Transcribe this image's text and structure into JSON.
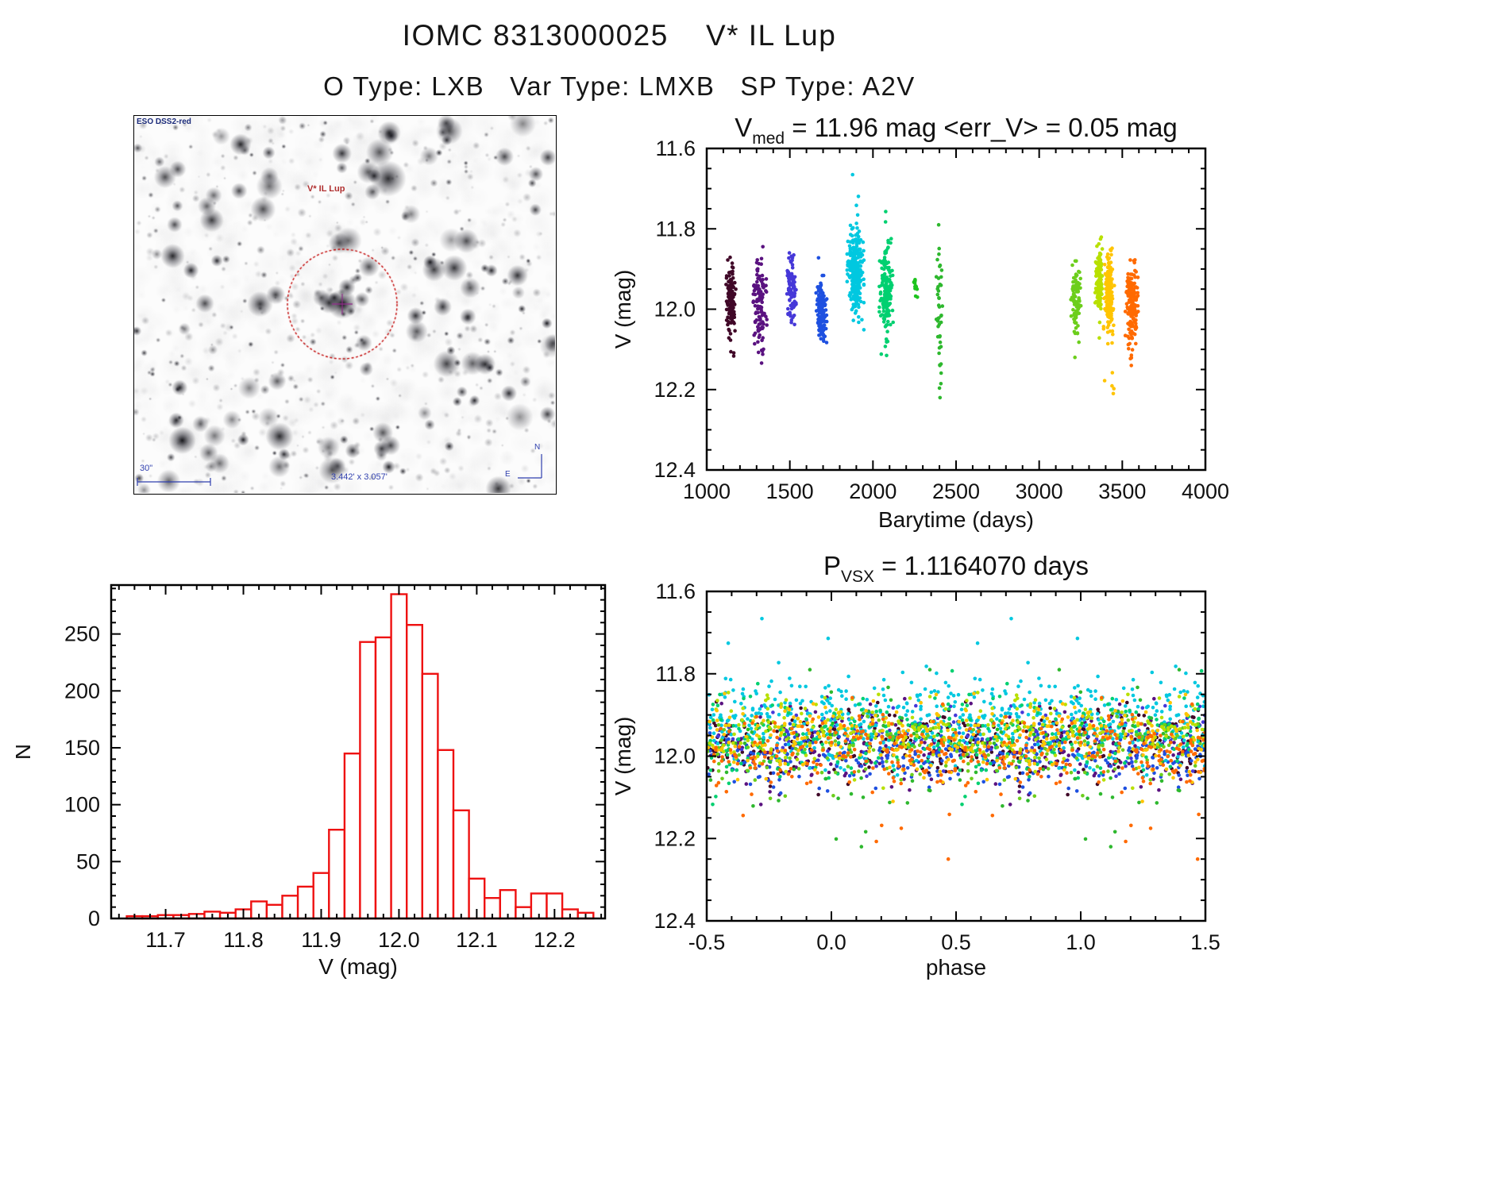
{
  "header": {
    "title": "IOMC 8313000025    V* IL Lup",
    "subtitle": "O Type: LXB   Var Type: LMXB   SP Type: A2V"
  },
  "finder": {
    "survey_label": "ESO DSS2-red",
    "target_label": "V* IL Lup",
    "scale_label": "30\"",
    "fov_label": "3.442' x 3.057'",
    "compass_north": "N",
    "compass_east": "E",
    "colors": {
      "circle": "#c00000",
      "target": "#b03030",
      "annotation": "#2f3fae"
    }
  },
  "chart_data": [
    {
      "name": "lightcurve",
      "type": "scatter",
      "title_parts": [
        {
          "t": "V"
        },
        {
          "t": "med",
          "sub": true
        },
        {
          "t": " = 11.96 mag  <err_V> = 0.05 mag"
        }
      ],
      "xlabel": "Barytime (days)",
      "ylabel": "V (mag)",
      "xlim": [
        1000,
        4000
      ],
      "ylim": [
        11.6,
        12.4
      ],
      "y_inverted": true,
      "xticks": [
        1000,
        1500,
        2000,
        2500,
        3000,
        3500,
        4000
      ],
      "xtick_labels": [
        "1000",
        "1500",
        "2000",
        "2500",
        "3000",
        "3500",
        "4000"
      ],
      "yticks": [
        11.6,
        11.8,
        12.0,
        12.2,
        12.4
      ],
      "ytick_labels": [
        "11.6",
        "11.8",
        "12.0",
        "12.2",
        "12.4"
      ],
      "x_minor": 100,
      "y_minor": 0.05,
      "series": [
        {
          "t": 1145,
          "t_sd": 13,
          "n": 150,
          "v": 11.97,
          "v_sd": 0.04,
          "v_lo": 11.84,
          "v_hi": 12.12,
          "color": "#400828"
        },
        {
          "t": 1320,
          "t_sd": 18,
          "n": 110,
          "v": 11.98,
          "v_sd": 0.05,
          "v_lo": 11.84,
          "v_hi": 12.16,
          "color": "#5a1280"
        },
        {
          "t": 1510,
          "t_sd": 14,
          "n": 90,
          "v": 11.95,
          "v_sd": 0.04,
          "v_lo": 11.86,
          "v_hi": 12.06,
          "color": "#4638d8"
        },
        {
          "t": 1690,
          "t_sd": 14,
          "n": 150,
          "v": 12.0,
          "v_sd": 0.035,
          "v_lo": 11.87,
          "v_hi": 12.1,
          "color": "#1e50e0"
        },
        {
          "t": 1895,
          "t_sd": 22,
          "n": 280,
          "v": 11.91,
          "v_sd": 0.05,
          "v_lo": 11.66,
          "v_hi": 12.06,
          "color": "#00c8e0"
        },
        {
          "t": 2080,
          "t_sd": 18,
          "n": 170,
          "v": 11.96,
          "v_sd": 0.05,
          "v_lo": 11.75,
          "v_hi": 12.12,
          "color": "#00d070"
        },
        {
          "t": 2255,
          "t_sd": 6,
          "n": 14,
          "v": 11.94,
          "v_sd": 0.012,
          "v_lo": 11.92,
          "v_hi": 11.97,
          "color": "#1ec41e"
        },
        {
          "t": 2400,
          "t_sd": 8,
          "n": 45,
          "v": 12.0,
          "v_sd": 0.1,
          "v_lo": 11.79,
          "v_hi": 12.22,
          "color": "#2eb82e"
        },
        {
          "t": 3220,
          "t_sd": 14,
          "n": 90,
          "v": 11.98,
          "v_sd": 0.045,
          "v_lo": 11.88,
          "v_hi": 12.12,
          "color": "#6cce1c"
        },
        {
          "t": 3360,
          "t_sd": 10,
          "n": 120,
          "v": 11.93,
          "v_sd": 0.04,
          "v_lo": 11.8,
          "v_hi": 12.08,
          "color": "#b8e000"
        },
        {
          "t": 3420,
          "t_sd": 14,
          "n": 160,
          "v": 11.96,
          "v_sd": 0.045,
          "v_lo": 11.84,
          "v_hi": 12.25,
          "color": "#ffc400"
        },
        {
          "t": 3560,
          "t_sd": 18,
          "n": 170,
          "v": 11.99,
          "v_sd": 0.045,
          "v_lo": 11.85,
          "v_hi": 12.26,
          "color": "#ff6a00"
        }
      ]
    },
    {
      "name": "histogram",
      "type": "bar",
      "xlabel": "V (mag)",
      "ylabel": "N",
      "xlim": [
        11.63,
        12.265
      ],
      "ylim": [
        0,
        293
      ],
      "y_inverted": false,
      "xticks": [
        11.7,
        11.8,
        11.9,
        12.0,
        12.1,
        12.2
      ],
      "xtick_labels": [
        "11.7",
        "11.8",
        "11.9",
        "12.0",
        "12.1",
        "12.2"
      ],
      "yticks": [
        0,
        50,
        100,
        150,
        200,
        250
      ],
      "ytick_labels": [
        "0",
        "50",
        "100",
        "150",
        "200",
        "250"
      ],
      "x_minor": 0.02,
      "y_minor": 10,
      "bin_start": 11.65,
      "bin_width": 0.02,
      "counts": [
        2,
        2,
        3,
        3,
        4,
        6,
        5,
        8,
        15,
        12,
        20,
        28,
        40,
        78,
        145,
        243,
        247,
        285,
        258,
        215,
        148,
        95,
        35,
        18,
        25,
        10,
        22,
        22,
        8,
        5
      ],
      "bar_color": "#ee1111"
    },
    {
      "name": "phase-folded",
      "type": "scatter",
      "title_parts": [
        {
          "t": "P"
        },
        {
          "t": "VSX",
          "sub": true
        },
        {
          "t": " = 1.1164070 days"
        }
      ],
      "xlabel": "phase",
      "ylabel": "V (mag)",
      "xlim": [
        -0.5,
        1.5
      ],
      "ylim": [
        11.6,
        12.4
      ],
      "y_inverted": true,
      "xticks": [
        -0.5,
        0.0,
        0.5,
        1.0,
        1.5
      ],
      "xtick_labels": [
        "-0.5",
        "0.0",
        "0.5",
        "1.0",
        "1.5"
      ],
      "yticks": [
        11.6,
        11.8,
        12.0,
        12.2,
        12.4
      ],
      "ytick_labels": [
        "11.6",
        "11.8",
        "12.0",
        "12.2",
        "12.4"
      ],
      "x_minor": 0.1,
      "y_minor": 0.05,
      "period_days": 1.116407,
      "source_series": "lightcurve"
    }
  ]
}
